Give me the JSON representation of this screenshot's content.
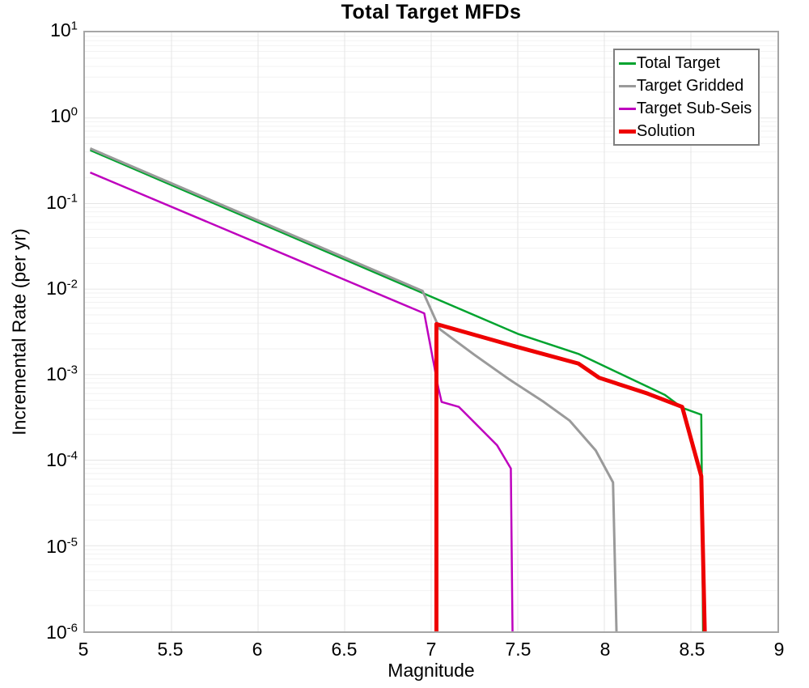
{
  "chart_data": {
    "type": "line",
    "title": "Total Target MFDs",
    "xlabel": "Magnitude",
    "ylabel": "Incremental Rate (per yr)",
    "xlim": [
      5,
      9
    ],
    "ylim": [
      1e-06,
      10
    ],
    "yscale": "log",
    "grid": {
      "background": "#FFFFFF",
      "minor_color": "#F2F2F2",
      "major_color": "#E5E5E5",
      "spine_color": "#A6A6A6",
      "legend_border": "#7F7F7F"
    },
    "x_ticks": [
      {
        "value": 5,
        "label": "5"
      },
      {
        "value": 5.5,
        "label": "5.5"
      },
      {
        "value": 6,
        "label": "6"
      },
      {
        "value": 6.5,
        "label": "6.5"
      },
      {
        "value": 7,
        "label": "7"
      },
      {
        "value": 7.5,
        "label": "7.5"
      },
      {
        "value": 8,
        "label": "8"
      },
      {
        "value": 8.5,
        "label": "8.5"
      },
      {
        "value": 9,
        "label": "9"
      }
    ],
    "y_ticks": [
      {
        "value": 1,
        "base": "10",
        "exp": "1"
      },
      {
        "value": 0,
        "base": "10",
        "exp": "0"
      },
      {
        "value": -1,
        "base": "10",
        "exp": "-1"
      },
      {
        "value": -2,
        "base": "10",
        "exp": "-2"
      },
      {
        "value": -3,
        "base": "10",
        "exp": "-3"
      },
      {
        "value": -4,
        "base": "10",
        "exp": "-4"
      },
      {
        "value": -5,
        "base": "10",
        "exp": "-5"
      },
      {
        "value": -6,
        "base": "10",
        "exp": "-6"
      }
    ],
    "legend": {
      "position": "top-right"
    },
    "series": [
      {
        "name": "Total Target",
        "color": "#00A32E",
        "width": 2.5,
        "points": [
          [
            5.03,
            0.42
          ],
          [
            6.95,
            0.009
          ],
          [
            7.5,
            0.003
          ],
          [
            7.85,
            0.00175
          ],
          [
            8.35,
            0.00058
          ],
          [
            8.45,
            0.00041
          ],
          [
            8.56,
            0.00034
          ],
          [
            8.57,
            1e-06
          ]
        ]
      },
      {
        "name": "Target Gridded",
        "color": "#9A9A9A",
        "width": 3,
        "points": [
          [
            5.03,
            0.44
          ],
          [
            6.95,
            0.0095
          ],
          [
            7.05,
            0.0034
          ],
          [
            7.25,
            0.0017
          ],
          [
            7.45,
            0.00088
          ],
          [
            7.65,
            0.00048
          ],
          [
            7.8,
            0.00029
          ],
          [
            7.95,
            0.00013
          ],
          [
            8.05,
            5.5e-05
          ],
          [
            8.07,
            1e-06
          ]
        ]
      },
      {
        "name": "Target Sub-Seis",
        "color": "#BE00BE",
        "width": 2.5,
        "points": [
          [
            5.03,
            0.23
          ],
          [
            6.96,
            0.0052
          ],
          [
            7.04,
            0.00072
          ],
          [
            7.06,
            0.00048
          ],
          [
            7.16,
            0.00042
          ],
          [
            7.38,
            0.00015
          ],
          [
            7.46,
            8e-05
          ],
          [
            7.47,
            1e-06
          ]
        ]
      },
      {
        "name": "Solution",
        "color": "#EE0000",
        "width": 5,
        "points": [
          [
            7.03,
            1e-06
          ],
          [
            7.03,
            0.0039
          ],
          [
            7.5,
            0.0021
          ],
          [
            7.85,
            0.00135
          ],
          [
            7.97,
            0.00092
          ],
          [
            8.25,
            0.0006
          ],
          [
            8.45,
            0.00042
          ],
          [
            8.56,
            6.5e-05
          ],
          [
            8.58,
            1e-06
          ]
        ]
      }
    ]
  }
}
